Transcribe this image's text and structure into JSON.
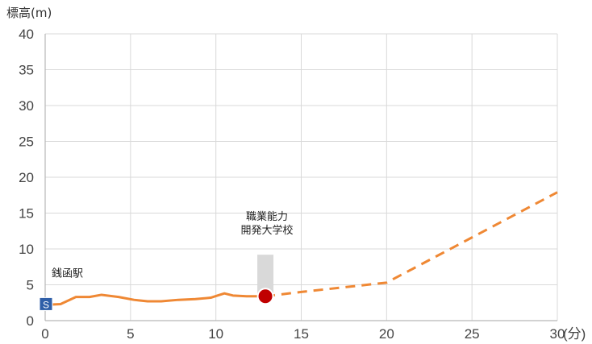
{
  "chart_data": {
    "type": "line",
    "ylabel": "標高(m)",
    "xlabel": "(分)",
    "xlim": [
      0,
      30
    ],
    "ylim": [
      0,
      40
    ],
    "x_ticks": [
      0,
      5,
      10,
      15,
      20,
      25,
      30
    ],
    "y_ticks": [
      0,
      5,
      10,
      15,
      20,
      25,
      30,
      35,
      40
    ],
    "grid": true,
    "colors": {
      "line": "#ef8834",
      "grid": "#d9d9d9",
      "marker": "#c00000",
      "start_box": "#2f5fa8",
      "bar": "#d9d9d9"
    },
    "series": [
      {
        "style": "solid",
        "x": [
          0,
          0.9,
          1.8,
          2.6,
          3.3,
          4.3,
          5.2,
          5.6,
          6.0,
          6.8,
          7.8,
          8.8,
          9.7,
          10.1,
          10.5,
          11.0,
          11.8,
          12.9
        ],
        "y": [
          2.2,
          2.3,
          3.3,
          3.3,
          3.6,
          3.3,
          2.9,
          2.8,
          2.7,
          2.7,
          2.9,
          3.0,
          3.2,
          3.5,
          3.8,
          3.5,
          3.4,
          3.4
        ]
      },
      {
        "style": "dashed",
        "x": [
          12.9,
          15,
          20,
          25,
          30
        ],
        "y": [
          3.4,
          4.0,
          5.3,
          11.6,
          17.9
        ]
      }
    ],
    "annotations": [
      {
        "label": "銭函駅",
        "x": 0,
        "y": 2.2
      },
      {
        "label_line1": "職業能力",
        "label_line2": "開発大学校",
        "x": 12.9,
        "y": 3.4,
        "bar_top": 9.2
      }
    ],
    "start_label": "S"
  }
}
